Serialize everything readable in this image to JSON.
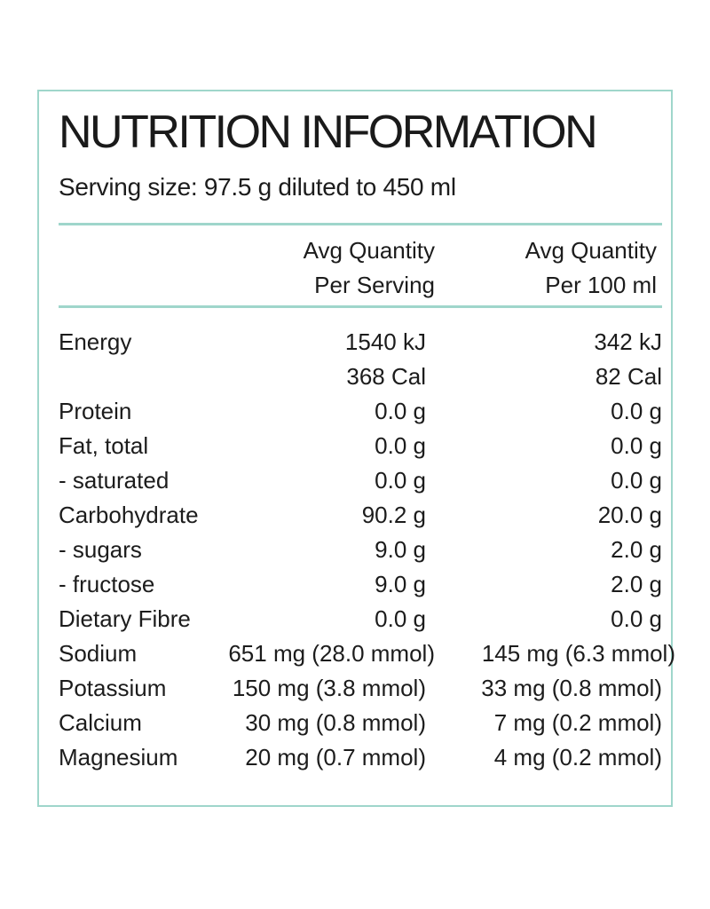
{
  "label": {
    "title": "NUTRITION INFORMATION",
    "serving_size": "Serving size: 97.5 g diluted to 450 ml",
    "columns": [
      {
        "line1": "Avg Quantity",
        "line2": "Per Serving"
      },
      {
        "line1": "Avg Quantity",
        "line2": "Per 100 ml"
      }
    ],
    "rows": [
      {
        "name": "Energy",
        "per_serving": "1540 kJ",
        "per_100ml": "342 kJ"
      },
      {
        "name": "",
        "per_serving": "368 Cal",
        "per_100ml": "82 Cal"
      },
      {
        "name": "Protein",
        "per_serving": "0.0 g",
        "per_100ml": "0.0 g"
      },
      {
        "name": "Fat, total",
        "per_serving": "0.0 g",
        "per_100ml": "0.0 g"
      },
      {
        "name": "- saturated",
        "per_serving": "0.0 g",
        "per_100ml": "0.0 g"
      },
      {
        "name": "Carbohydrate",
        "per_serving": "90.2 g",
        "per_100ml": "20.0 g"
      },
      {
        "name": "- sugars",
        "per_serving": "9.0 g",
        "per_100ml": "2.0 g"
      },
      {
        "name": "- fructose",
        "per_serving": "9.0 g",
        "per_100ml": "2.0 g"
      },
      {
        "name": "Dietary Fibre",
        "per_serving": "0.0 g",
        "per_100ml": "0.0 g"
      },
      {
        "name": "Sodium",
        "per_serving": "651 mg (28.0 mmol)",
        "per_100ml": "145 mg (6.3 mmol)"
      },
      {
        "name": "Potassium",
        "per_serving": "150 mg (3.8 mmol)",
        "per_100ml": "33 mg (0.8 mmol)"
      },
      {
        "name": "Calcium",
        "per_serving": "30 mg (0.8 mmol)",
        "per_100ml": "7 mg (0.2 mmol)"
      },
      {
        "name": "Magnesium",
        "per_serving": "20 mg (0.7 mmol)",
        "per_100ml": "4 mg (0.2 mmol)"
      }
    ]
  },
  "colors": {
    "border": "#9fd6cb",
    "text": "#1c1c1c"
  }
}
